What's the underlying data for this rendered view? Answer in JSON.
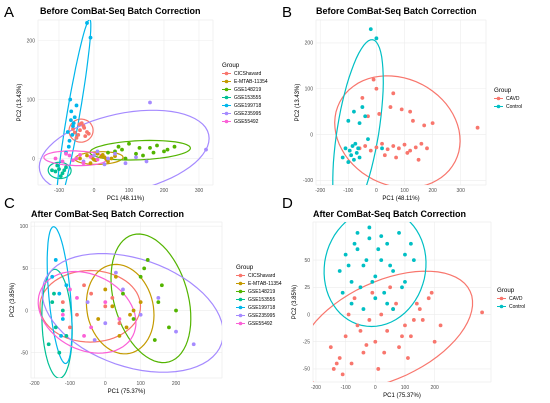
{
  "figure": {
    "panels": [
      {
        "letter": "A",
        "title": "Before ComBat-Seq Batch Correction",
        "legend_title": "Group"
      },
      {
        "letter": "B",
        "title": "Before ComBat-Seq Batch Correction",
        "legend_title": "Group"
      },
      {
        "letter": "C",
        "title": "After ComBat-Seq Batch Correction",
        "legend_title": "Group"
      },
      {
        "letter": "D",
        "title": "After ComBat-Seq Batch Correction",
        "legend_title": "Group"
      }
    ]
  },
  "chart_data": [
    {
      "type": "scatter",
      "title": "Before ComBat-Seq Batch Correction",
      "xlabel": "PC1 (48.11%)",
      "ylabel": "PC2 (13.43%)",
      "xlim": [
        -160,
        340
      ],
      "ylim": [
        -45,
        235
      ],
      "xticks": [
        -100,
        0,
        100,
        200,
        300
      ],
      "yticks": [
        0,
        100,
        200
      ],
      "grid": true,
      "legend_position": "right",
      "legend_title": "Group",
      "series": [
        {
          "name": "CICShavard",
          "color": "#F8766D",
          "x": [
            -60,
            -45,
            -30,
            -20,
            -50,
            -35,
            -25,
            -40,
            -15,
            -55,
            -28,
            -42
          ],
          "y": [
            50,
            40,
            55,
            45,
            35,
            60,
            38,
            48,
            42,
            44,
            52,
            58
          ]
        },
        {
          "name": "E-MTAB-11354",
          "color": "#C49A00",
          "x": [
            -40,
            -20,
            0,
            20,
            40,
            10,
            -10,
            30,
            50,
            60,
            5,
            25,
            -5,
            35
          ],
          "y": [
            0,
            5,
            -2,
            3,
            -5,
            8,
            -8,
            2,
            0,
            4,
            -3,
            6,
            1,
            -1
          ]
        },
        {
          "name": "GSE148219",
          "color": "#53B400",
          "x": [
            40,
            80,
            120,
            160,
            200,
            230,
            100,
            140,
            180,
            60,
            90,
            170,
            210,
            130,
            70
          ],
          "y": [
            10,
            15,
            8,
            18,
            12,
            20,
            25,
            5,
            22,
            12,
            0,
            10,
            15,
            18,
            20
          ]
        },
        {
          "name": "GSE153555",
          "color": "#00C094",
          "x": [
            -120,
            -100,
            -90,
            -80,
            -110,
            -95,
            -85,
            -105
          ],
          "y": [
            -20,
            -18,
            -25,
            -15,
            -22,
            -30,
            -20,
            -12
          ]
        },
        {
          "name": "GSE199718",
          "color": "#00B6EB",
          "x": [
            -70,
            -60,
            -65,
            -55,
            -75,
            -68,
            -58,
            -50,
            -72,
            -62,
            -80,
            -66,
            -20,
            -10
          ],
          "y": [
            30,
            55,
            80,
            70,
            45,
            100,
            60,
            90,
            20,
            40,
            10,
            65,
            230,
            205
          ]
        },
        {
          "name": "GSE235995",
          "color": "#A58AFF",
          "x": [
            -30,
            0,
            30,
            60,
            90,
            120,
            150,
            10,
            40,
            320,
            160
          ],
          "y": [
            -5,
            5,
            -10,
            8,
            -8,
            2,
            -5,
            12,
            0,
            15,
            95
          ]
        },
        {
          "name": "GSE55492",
          "color": "#FB61D7",
          "x": [
            -110,
            -90,
            -70,
            -50,
            -30,
            -10,
            10,
            -80,
            -60,
            -40
          ],
          "y": [
            0,
            -5,
            5,
            0,
            -8,
            3,
            -2,
            8,
            -3,
            6
          ]
        }
      ]
    },
    {
      "type": "scatter",
      "title": "Before ComBat-Seq Batch Correction",
      "xlabel": "PC1 (48.11%)",
      "ylabel": "PC2 (13.43%)",
      "xlim": [
        -215,
        390
      ],
      "ylim": [
        -110,
        250
      ],
      "xticks": [
        -200,
        -100,
        0,
        100,
        200,
        300
      ],
      "yticks": [
        -100,
        0,
        100,
        200
      ],
      "grid": true,
      "legend_position": "right",
      "legend_title": "Group",
      "series": [
        {
          "name": "CAVD",
          "color": "#F8766D",
          "x": [
            -60,
            -40,
            -20,
            0,
            20,
            40,
            60,
            80,
            100,
            120,
            140,
            160,
            180,
            -30,
            10,
            50,
            90,
            130,
            170,
            200,
            30,
            70,
            110,
            150,
            -10,
            0,
            360,
            60,
            120,
            -50
          ],
          "y": [
            -30,
            -25,
            -35,
            -28,
            -20,
            -32,
            -25,
            -30,
            -22,
            -35,
            -28,
            -20,
            -30,
            40,
            45,
            60,
            55,
            30,
            20,
            25,
            -45,
            -50,
            -40,
            -55,
            120,
            100,
            15,
            90,
            50,
            80
          ]
        },
        {
          "name": "Control",
          "color": "#00BFC4",
          "x": [
            -120,
            -100,
            -90,
            -80,
            -70,
            -60,
            -110,
            -95,
            -85,
            -75,
            -65,
            -50,
            -40,
            -100,
            -80,
            -60,
            -20,
            0,
            20,
            -30
          ],
          "y": [
            -50,
            -60,
            -45,
            -55,
            -40,
            -50,
            -30,
            -35,
            -25,
            -20,
            -30,
            60,
            40,
            30,
            50,
            25,
            230,
            210,
            -30,
            -10
          ]
        }
      ]
    },
    {
      "type": "scatter",
      "title": "After ComBat-Seq Batch Correction",
      "xlabel": "PC1 (75.37%)",
      "ylabel": "PC2 (3.85%)",
      "xlim": [
        -210,
        330
      ],
      "ylim": [
        -80,
        105
      ],
      "xticks": [
        -200,
        -100,
        0,
        100,
        200
      ],
      "yticks": [
        -50,
        0,
        50,
        100
      ],
      "grid": true,
      "legend_position": "right",
      "legend_title": "Group",
      "series": [
        {
          "name": "CICShavard",
          "color": "#F8766D",
          "x": [
            -120,
            -80,
            -40,
            0,
            40,
            -60,
            20,
            -100
          ],
          "y": [
            10,
            -5,
            20,
            5,
            -15,
            30,
            15,
            -20
          ]
        },
        {
          "name": "E-MTAB-11354",
          "color": "#C49A00",
          "x": [
            -20,
            20,
            60,
            100,
            0,
            40,
            80,
            30,
            70
          ],
          "y": [
            -10,
            5,
            -20,
            10,
            25,
            -30,
            0,
            40,
            -5
          ]
        },
        {
          "name": "GSE148219",
          "color": "#53B400",
          "x": [
            50,
            100,
            150,
            180,
            120,
            80,
            160,
            200,
            140,
            110
          ],
          "y": [
            20,
            40,
            10,
            -20,
            60,
            -10,
            30,
            0,
            -35,
            50
          ]
        },
        {
          "name": "GSE153555",
          "color": "#00C094",
          "x": [
            -160,
            -140,
            -120,
            -150,
            -130,
            -110,
            -145
          ],
          "y": [
            -40,
            -20,
            0,
            10,
            -50,
            -30,
            20
          ]
        },
        {
          "name": "GSE199718",
          "color": "#00B6EB",
          "x": [
            -150,
            -130,
            -120,
            -140,
            -110,
            -125
          ],
          "y": [
            40,
            20,
            -10,
            60,
            30,
            -30
          ]
        },
        {
          "name": "GSE235995",
          "color": "#A58AFF",
          "x": [
            -50,
            0,
            50,
            100,
            150,
            200,
            250,
            30,
            -30
          ],
          "y": [
            10,
            -15,
            25,
            -5,
            15,
            -25,
            -40,
            45,
            -35
          ]
        },
        {
          "name": "GSE55492",
          "color": "#FB61D7",
          "x": [
            -120,
            -80,
            -40,
            0,
            40,
            -100,
            -60
          ],
          "y": [
            -5,
            15,
            -20,
            10,
            -10,
            25,
            -30
          ]
        }
      ]
    },
    {
      "type": "scatter",
      "title": "After ComBat-Seq Batch Correction",
      "xlabel": "PC1 (75.37%)",
      "ylabel": "PC2 (3.85%)",
      "xlim": [
        -210,
        390
      ],
      "ylim": [
        -62,
        85
      ],
      "xticks": [
        -200,
        -100,
        0,
        100,
        200
      ],
      "yticks": [
        -50,
        -25,
        0,
        25,
        50
      ],
      "grid": true,
      "legend_position": "right",
      "legend_title": "Group",
      "series": [
        {
          "name": "CAVD",
          "color": "#F8766D",
          "x": [
            -150,
            -120,
            -100,
            -80,
            -60,
            -40,
            -20,
            0,
            20,
            40,
            60,
            80,
            100,
            120,
            140,
            160,
            180,
            200,
            -130,
            -90,
            -50,
            -10,
            30,
            70,
            110,
            150,
            190,
            10,
            50,
            90,
            130,
            -70,
            -30,
            360,
            220,
            -140,
            -110
          ],
          "y": [
            -30,
            -40,
            -20,
            -45,
            -10,
            -35,
            -5,
            -25,
            0,
            -15,
            5,
            -30,
            -10,
            -20,
            10,
            -5,
            15,
            -25,
            -45,
            0,
            -15,
            20,
            -35,
            10,
            -40,
            5,
            20,
            -50,
            25,
            -20,
            -5,
            15,
            -28,
            2,
            -10,
            -50,
            -55
          ]
        },
        {
          "name": "Control",
          "color": "#00BFC4",
          "x": [
            -120,
            -100,
            -80,
            -60,
            -40,
            -20,
            0,
            20,
            40,
            60,
            80,
            100,
            -110,
            -90,
            -70,
            -50,
            -30,
            -10,
            10,
            30,
            50,
            -80,
            -40,
            0,
            40,
            90,
            120,
            -60,
            -20,
            20,
            60,
            100,
            130
          ],
          "y": [
            40,
            55,
            30,
            60,
            45,
            70,
            35,
            50,
            65,
            40,
            75,
            55,
            20,
            45,
            65,
            25,
            50,
            30,
            60,
            20,
            45,
            10,
            5,
            15,
            10,
            25,
            65,
            75,
            80,
            72,
            5,
            30,
            50
          ]
        }
      ]
    }
  ]
}
